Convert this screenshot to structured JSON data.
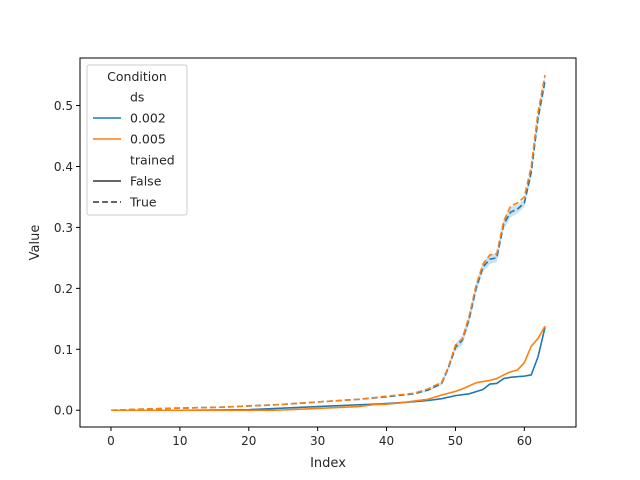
{
  "chart_data": {
    "type": "line",
    "xlabel": "Index",
    "ylabel": "Value",
    "xlim": [
      -4.5,
      67.5
    ],
    "ylim": [
      -0.0275,
      0.578
    ],
    "xticks": [
      0,
      10,
      20,
      30,
      40,
      50,
      60
    ],
    "yticks": [
      0.0,
      0.1,
      0.2,
      0.3,
      0.4,
      0.5
    ],
    "ytick_labels": [
      "0.0",
      "0.1",
      "0.2",
      "0.3",
      "0.4",
      "0.5"
    ],
    "grid": false,
    "legend": {
      "placement": "top-left",
      "title": "Condition",
      "entries": [
        {
          "label": "ds",
          "kind": "header"
        },
        {
          "label": "0.002",
          "kind": "color",
          "color": "#1f77b4"
        },
        {
          "label": "0.005",
          "kind": "color",
          "color": "#ff7f0e"
        },
        {
          "label": "trained",
          "kind": "header"
        },
        {
          "label": "False",
          "kind": "style",
          "dash": "solid"
        },
        {
          "label": "True",
          "kind": "style",
          "dash": "dashed"
        }
      ]
    },
    "series": [
      {
        "ds": "0.002",
        "trained": "True",
        "color": "#1f77b4",
        "dash": "dashed",
        "x": [
          0,
          4,
          8,
          12,
          16,
          20,
          24,
          28,
          32,
          36,
          40,
          44,
          46,
          48,
          49,
          50,
          51,
          52,
          53,
          54,
          55,
          56,
          57,
          58,
          59,
          60,
          61,
          62,
          63
        ],
        "y": [
          0.0,
          0.0015,
          0.003,
          0.004,
          0.005,
          0.007,
          0.009,
          0.012,
          0.015,
          0.018,
          0.022,
          0.027,
          0.033,
          0.044,
          0.07,
          0.103,
          0.115,
          0.15,
          0.2,
          0.235,
          0.248,
          0.25,
          0.305,
          0.325,
          0.33,
          0.34,
          0.39,
          0.48,
          0.54
        ],
        "band": [
          0,
          0,
          0,
          0,
          0,
          0,
          0,
          0,
          0,
          0,
          0,
          0,
          0.002,
          0.003,
          0.004,
          0.006,
          0.008,
          0.008,
          0.008,
          0.008,
          0.008,
          0.007,
          0.008,
          0.009,
          0.007,
          0.006,
          0.008,
          0.01,
          0.009
        ]
      },
      {
        "ds": "0.005",
        "trained": "True",
        "color": "#ff7f0e",
        "dash": "dashed",
        "x": [
          0,
          4,
          8,
          12,
          16,
          20,
          24,
          28,
          32,
          36,
          40,
          44,
          46,
          48,
          49,
          50,
          51,
          52,
          53,
          54,
          55,
          56,
          57,
          58,
          59,
          60,
          61,
          62,
          63
        ],
        "y": [
          0.0,
          0.0018,
          0.003,
          0.004,
          0.005,
          0.007,
          0.009,
          0.012,
          0.015,
          0.018,
          0.023,
          0.028,
          0.035,
          0.046,
          0.072,
          0.107,
          0.117,
          0.155,
          0.205,
          0.24,
          0.255,
          0.257,
          0.31,
          0.335,
          0.34,
          0.35,
          0.4,
          0.49,
          0.55
        ]
      },
      {
        "ds": "0.002",
        "trained": "False",
        "color": "#1f77b4",
        "dash": "solid",
        "x": [
          0,
          10,
          20,
          24,
          28,
          32,
          36,
          40,
          44,
          46,
          48,
          50,
          52,
          54,
          55,
          56,
          57,
          58,
          59,
          60,
          61,
          62,
          63
        ],
        "y": [
          0.0,
          0.0,
          0.001,
          0.003,
          0.005,
          0.007,
          0.009,
          0.011,
          0.014,
          0.016,
          0.019,
          0.024,
          0.027,
          0.034,
          0.043,
          0.044,
          0.052,
          0.054,
          0.055,
          0.056,
          0.058,
          0.088,
          0.136
        ]
      },
      {
        "ds": "0.005",
        "trained": "False",
        "color": "#ff7f0e",
        "dash": "solid",
        "x": [
          0,
          10,
          20,
          24,
          28,
          32,
          36,
          38,
          40,
          42,
          44,
          46,
          48,
          50,
          51,
          52,
          53,
          54,
          55,
          56,
          57,
          58,
          59,
          60,
          61,
          62,
          63
        ],
        "y": [
          0.0,
          0.0,
          0.0,
          0.0,
          0.002,
          0.004,
          0.006,
          0.009,
          0.01,
          0.012,
          0.015,
          0.018,
          0.025,
          0.031,
          0.035,
          0.04,
          0.045,
          0.047,
          0.049,
          0.052,
          0.058,
          0.063,
          0.066,
          0.078,
          0.105,
          0.118,
          0.138
        ]
      }
    ]
  }
}
